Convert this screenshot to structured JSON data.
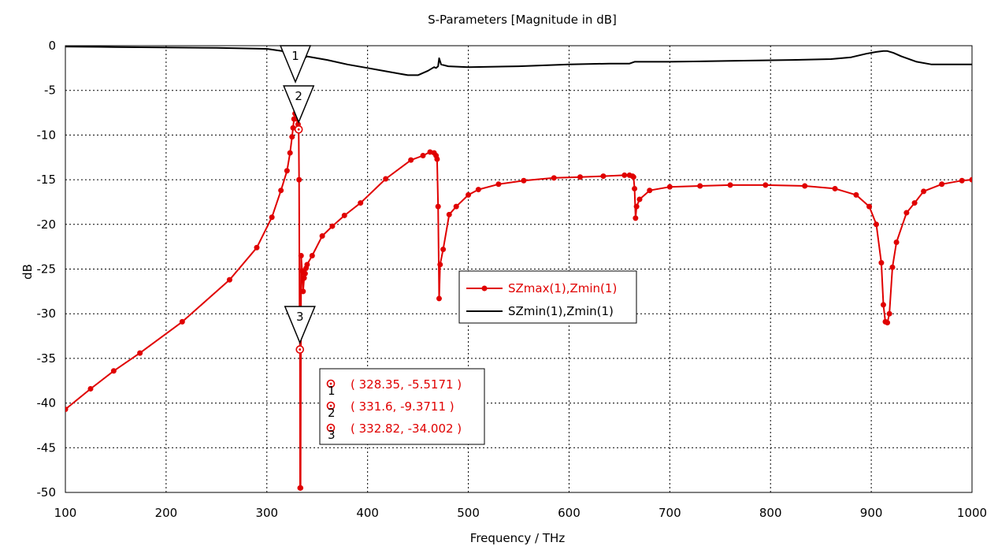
{
  "chart_data": {
    "type": "line",
    "title": "S-Parameters [Magnitude in dB]",
    "xlabel": "Frequency / THz",
    "ylabel": "dB",
    "xlim": [
      100,
      1000
    ],
    "ylim": [
      -50,
      0
    ],
    "xticks": [
      100,
      200,
      300,
      400,
      500,
      600,
      700,
      800,
      900,
      1000
    ],
    "yticks": [
      0,
      -5,
      -10,
      -15,
      -20,
      -25,
      -30,
      -35,
      -40,
      -45,
      -50
    ],
    "grid": true,
    "legend_position": "center",
    "colors": {
      "red": "#e00000",
      "black": "#000000"
    },
    "series": [
      {
        "name": "SZmax(1),Zmin(1)",
        "color": "#e00000",
        "markers": true,
        "x": [
          100,
          125,
          148,
          174,
          216,
          263,
          290,
          305,
          314,
          320,
          323,
          325,
          326,
          327,
          328,
          328.35,
          329,
          330,
          331,
          331.6,
          332,
          332.5,
          332.82,
          333,
          333.5,
          334,
          335,
          336,
          337,
          338,
          339,
          340,
          345,
          355,
          365,
          377,
          393,
          418,
          443,
          455,
          462,
          466,
          468,
          469,
          470,
          471,
          472,
          475,
          481,
          488,
          500,
          510,
          530,
          555,
          585,
          611,
          634,
          655,
          660,
          663,
          664,
          665,
          666,
          667,
          670,
          680,
          700,
          730,
          760,
          795,
          834,
          864,
          885,
          898,
          905,
          910,
          912,
          914,
          916,
          918,
          921,
          925,
          935,
          943,
          952,
          970,
          990,
          1000
        ],
        "y": [
          -40.7,
          -38.4,
          -36.4,
          -34.4,
          -30.9,
          -26.2,
          -22.6,
          -19.2,
          -16.2,
          -14.0,
          -12.0,
          -10.2,
          -9.2,
          -8.2,
          -7.6,
          -5.5171,
          -7.4,
          -8.2,
          -8.8,
          -9.3711,
          -15,
          -30,
          -34.002,
          -49.5,
          -49.5,
          -23.5,
          -25.2,
          -27.5,
          -26.0,
          -25.5,
          -24.9,
          -24.5,
          -23.5,
          -21.3,
          -20.2,
          -19.0,
          -17.6,
          -14.9,
          -12.8,
          -12.3,
          -11.9,
          -12.0,
          -12.3,
          -12.7,
          -18.0,
          -28.3,
          -24.5,
          -22.8,
          -18.9,
          -18.0,
          -16.7,
          -16.1,
          -15.5,
          -15.1,
          -14.8,
          -14.7,
          -14.6,
          -14.5,
          -14.5,
          -14.6,
          -14.7,
          -16.0,
          -19.3,
          -18.0,
          -17.2,
          -16.2,
          -15.8,
          -15.7,
          -15.6,
          -15.6,
          -15.7,
          -16.0,
          -16.7,
          -18.0,
          -20.0,
          -24.3,
          -29.0,
          -30.9,
          -31.0,
          -30.0,
          -24.8,
          -22.0,
          -18.7,
          -17.6,
          -16.3,
          -15.5,
          -15.1,
          -15.0
        ]
      },
      {
        "name": "SZmin(1),Zmin(1)",
        "color": "#000000",
        "markers": false,
        "x": [
          100,
          150,
          200,
          250,
          300,
          315,
          322,
          326,
          330,
          334,
          340,
          360,
          380,
          400,
          420,
          440,
          450,
          460,
          466,
          468,
          470,
          471,
          473,
          480,
          500,
          550,
          600,
          640,
          660,
          665,
          670,
          700,
          760,
          820,
          860,
          880,
          895,
          905,
          912,
          916,
          922,
          930,
          945,
          960,
          980,
          1000
        ],
        "y": [
          -0.1,
          -0.15,
          -0.2,
          -0.25,
          -0.35,
          -0.6,
          -1.0,
          -1.5,
          -2.5,
          -1.6,
          -1.2,
          -1.6,
          -2.1,
          -2.5,
          -2.9,
          -3.3,
          -3.3,
          -2.8,
          -2.4,
          -2.5,
          -2.3,
          -1.4,
          -2.1,
          -2.3,
          -2.4,
          -2.3,
          -2.1,
          -2.0,
          -2.0,
          -1.8,
          -1.8,
          -1.8,
          -1.7,
          -1.6,
          -1.5,
          -1.3,
          -0.9,
          -0.7,
          -0.6,
          -0.6,
          -0.8,
          -1.2,
          -1.8,
          -2.1,
          -2.1,
          -2.1
        ]
      }
    ],
    "markers": [
      {
        "label": "1",
        "x": 328.35,
        "y": -5.5171,
        "text": "( 328.35, -5.5171 )"
      },
      {
        "label": "2",
        "x": 331.6,
        "y": -9.3711,
        "text": "( 331.6, -9.3711 )"
      },
      {
        "label": "3",
        "x": 332.82,
        "y": -34.002,
        "text": "( 332.82, -34.002 )"
      }
    ]
  }
}
